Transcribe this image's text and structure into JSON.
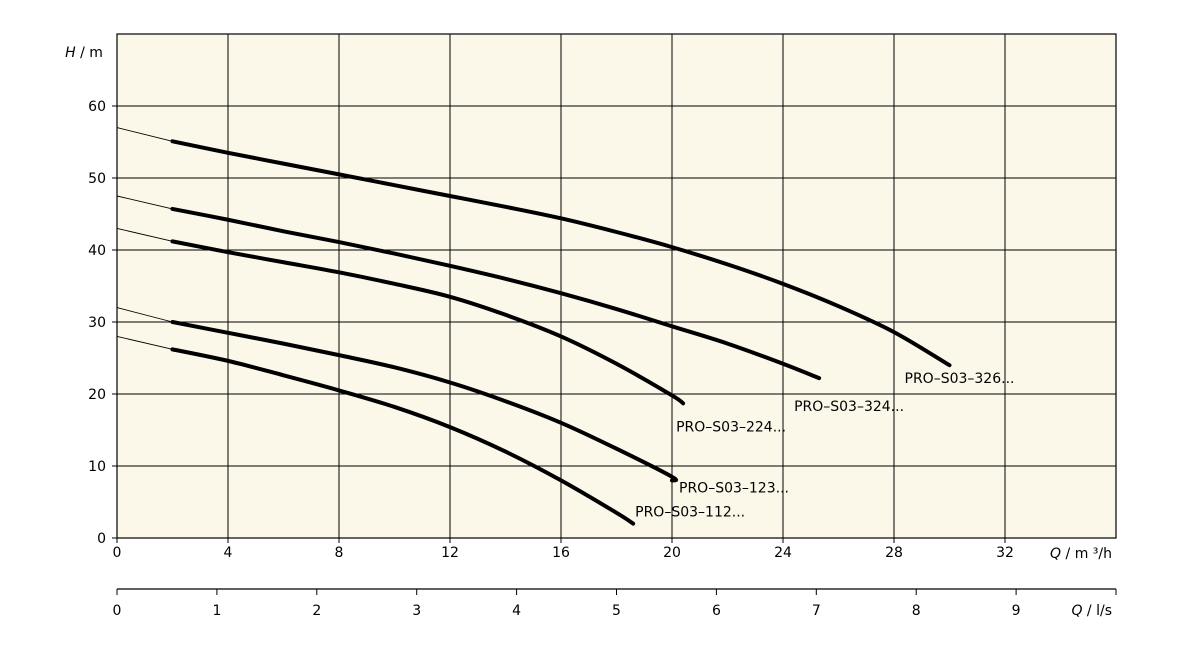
{
  "chart_data": {
    "type": "line",
    "background_color": "#fbf8e9",
    "line_color": "#000000",
    "grid": true,
    "y_axis": {
      "label_var": "H",
      "label_unit": "m",
      "range": [
        0,
        70
      ],
      "ticks": [
        0,
        10,
        20,
        30,
        40,
        50,
        60
      ]
    },
    "x_axis": {
      "label_var": "Q",
      "label_unit": "m ³/h",
      "range": [
        0,
        36
      ],
      "ticks": [
        0,
        4,
        8,
        12,
        16,
        20,
        24,
        28,
        32
      ]
    },
    "x_axis_secondary": {
      "label_var": "Q",
      "label_unit": "l/s",
      "range": [
        0,
        10
      ],
      "ticks": [
        0,
        1,
        2,
        3,
        4,
        5,
        6,
        7,
        8,
        9
      ]
    },
    "series": [
      {
        "name": "PRO–S03–326...",
        "extrapolation": [
          [
            0,
            57.0
          ],
          [
            2,
            55.1
          ]
        ],
        "points": [
          [
            2,
            55.1
          ],
          [
            4,
            53.5
          ],
          [
            6,
            52.0
          ],
          [
            8,
            50.5
          ],
          [
            10,
            49.0
          ],
          [
            12,
            47.5
          ],
          [
            14,
            46.0
          ],
          [
            16,
            44.4
          ],
          [
            18,
            42.5
          ],
          [
            20,
            40.4
          ],
          [
            22,
            38.0
          ],
          [
            24,
            35.3
          ],
          [
            26,
            32.2
          ],
          [
            28,
            28.6
          ],
          [
            30,
            24.0
          ]
        ]
      },
      {
        "name": "PRO–S03–324...",
        "extrapolation": [
          [
            0,
            47.5
          ],
          [
            2,
            45.7
          ]
        ],
        "points": [
          [
            2,
            45.7
          ],
          [
            4,
            44.2
          ],
          [
            6,
            42.6
          ],
          [
            8,
            41.1
          ],
          [
            10,
            39.5
          ],
          [
            12,
            37.8
          ],
          [
            14,
            36.0
          ],
          [
            16,
            34.0
          ],
          [
            18,
            31.8
          ],
          [
            20,
            29.4
          ],
          [
            22,
            27.0
          ],
          [
            24,
            24.2
          ],
          [
            25.3,
            22.2
          ]
        ]
      },
      {
        "name": "PRO–S03–224...",
        "extrapolation": [
          [
            0,
            43.0
          ],
          [
            2,
            41.2
          ]
        ],
        "points": [
          [
            2,
            41.2
          ],
          [
            4,
            39.7
          ],
          [
            6,
            38.3
          ],
          [
            8,
            36.9
          ],
          [
            10,
            35.3
          ],
          [
            12,
            33.5
          ],
          [
            14,
            31.0
          ],
          [
            16,
            28.0
          ],
          [
            18,
            24.2
          ],
          [
            20,
            19.8
          ],
          [
            20.4,
            18.7
          ]
        ]
      },
      {
        "name": "PRO–S03–123...",
        "extrapolation": [
          [
            0,
            32.0
          ],
          [
            2,
            30.0
          ]
        ],
        "points": [
          [
            2,
            30.0
          ],
          [
            4,
            28.5
          ],
          [
            6,
            27.0
          ],
          [
            8,
            25.4
          ],
          [
            10,
            23.7
          ],
          [
            12,
            21.6
          ],
          [
            14,
            19.0
          ],
          [
            16,
            16.0
          ],
          [
            18,
            12.4
          ],
          [
            20,
            8.5
          ],
          [
            20,
            8.0
          ]
        ]
      },
      {
        "name": "PRO–S03–112...",
        "extrapolation": [
          [
            0,
            28.0
          ],
          [
            2,
            26.2
          ]
        ],
        "points": [
          [
            2,
            26.2
          ],
          [
            4,
            24.6
          ],
          [
            6,
            22.6
          ],
          [
            8,
            20.5
          ],
          [
            10,
            18.2
          ],
          [
            12,
            15.4
          ],
          [
            14,
            12.0
          ],
          [
            16,
            8.0
          ],
          [
            18,
            3.5
          ],
          [
            18.6,
            2.0
          ]
        ]
      }
    ]
  }
}
